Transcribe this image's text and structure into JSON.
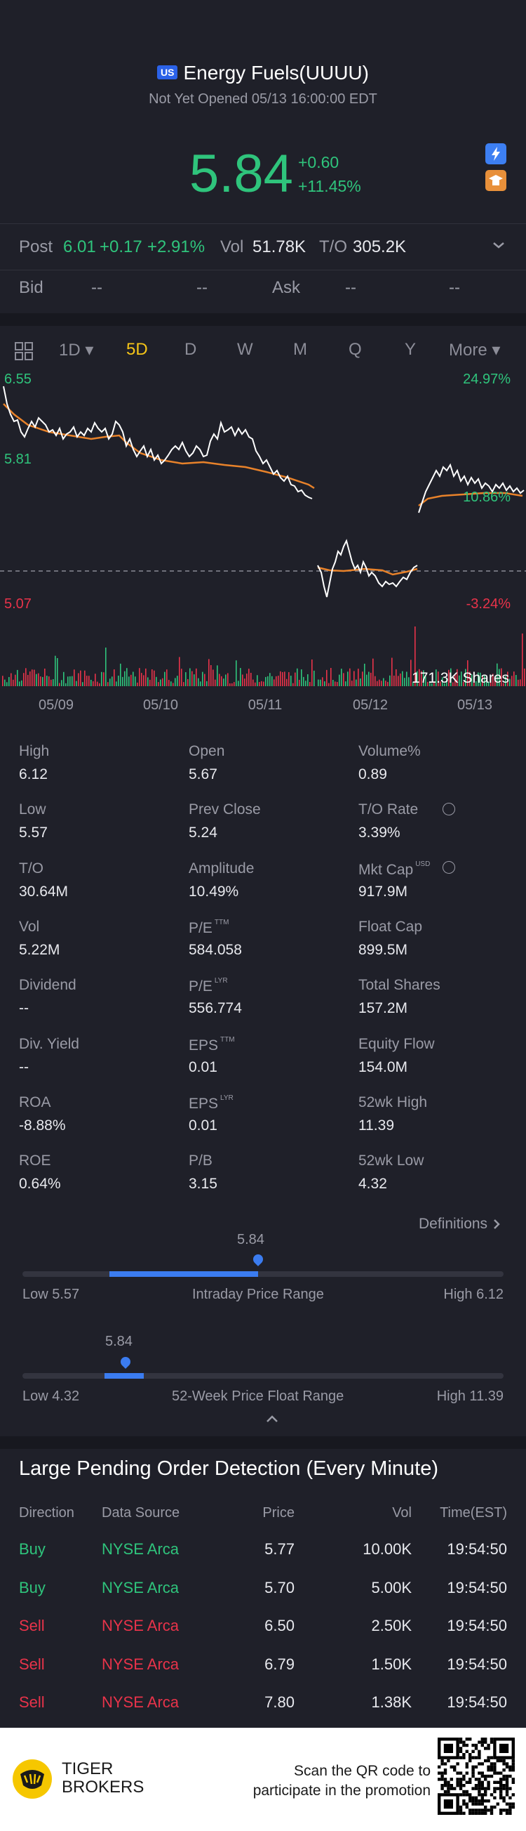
{
  "header": {
    "market_badge": "US",
    "title": "Energy Fuels(UUUU)",
    "status": "Not Yet Opened 05/13 16:00:00 EDT",
    "price": "5.84",
    "change": "+0.60",
    "change_pct": "+11.45%"
  },
  "post": {
    "label": "Post",
    "price": "6.01",
    "change": "+0.17",
    "change_pct": "+2.91%",
    "vol_label": "Vol",
    "vol": "51.78K",
    "to_label": "T/O",
    "to": "305.2K"
  },
  "bidask": {
    "bid_label": "Bid",
    "bid1": "--",
    "bid2": "--",
    "ask_label": "Ask",
    "ask1": "--",
    "ask2": "--"
  },
  "tabs": [
    "1D",
    "5D",
    "D",
    "W",
    "M",
    "Q",
    "Y",
    "More"
  ],
  "active_tab": "5D",
  "chart": {
    "left_top": "6.55",
    "left_mid": "5.81",
    "left_bottom": "5.07",
    "right_top": "24.97%",
    "right_mid": "10.86%",
    "right_bottom": "-3.24%",
    "volume_label": "171.3K Shares",
    "dates": [
      "05/09",
      "05/10",
      "05/11",
      "05/12",
      "05/13"
    ]
  },
  "stats": [
    {
      "label": "High",
      "value": "6.12"
    },
    {
      "label": "Open",
      "value": "5.67"
    },
    {
      "label": "Volume%",
      "value": "0.89"
    },
    {
      "label": "Low",
      "value": "5.57"
    },
    {
      "label": "Prev Close",
      "value": "5.24"
    },
    {
      "label": "T/O Rate",
      "value": "3.39%"
    },
    {
      "label": "T/O",
      "value": "30.64M"
    },
    {
      "label": "Amplitude",
      "value": "10.49%"
    },
    {
      "label": "Mkt Cap",
      "value": "917.9M",
      "sup": "USD"
    },
    {
      "label": "Vol",
      "value": "5.22M"
    },
    {
      "label": "P/E",
      "value": "584.058",
      "sup": "TTM"
    },
    {
      "label": "Float Cap",
      "value": "899.5M"
    },
    {
      "label": "Dividend",
      "value": "--"
    },
    {
      "label": "P/E",
      "value": "556.774",
      "sup": "LYR"
    },
    {
      "label": "Total Shares",
      "value": "157.2M"
    },
    {
      "label": "Div. Yield",
      "value": "--"
    },
    {
      "label": "EPS",
      "value": "0.01",
      "sup": "TTM"
    },
    {
      "label": "Equity Flow",
      "value": "154.0M"
    },
    {
      "label": "ROA",
      "value": "-8.88%"
    },
    {
      "label": "EPS",
      "value": "0.01",
      "sup": "LYR"
    },
    {
      "label": "52wk High",
      "value": "11.39"
    },
    {
      "label": "ROE",
      "value": "0.64%"
    },
    {
      "label": "P/B",
      "value": "3.15"
    },
    {
      "label": "52wk Low",
      "value": "4.32"
    }
  ],
  "definitions_link": "Definitions",
  "intraday_range": {
    "current": "5.84",
    "low": "Low 5.57",
    "title": "Intraday Price Range",
    "high": "High 6.12",
    "position": 0.49
  },
  "week52_range": {
    "current": "5.84",
    "low": "Low 4.32",
    "title": "52-Week Price Float Range",
    "high": "High 11.39",
    "position": 0.215
  },
  "orders": {
    "title": "Large Pending Order Detection (Every Minute)",
    "headers": [
      "Direction",
      "Data Source",
      "Price",
      "Vol",
      "Time(EST)"
    ],
    "rows": [
      {
        "direction": "Buy",
        "source": "NYSE Arca",
        "price": "5.77",
        "vol": "10.00K",
        "time": "19:54:50"
      },
      {
        "direction": "Buy",
        "source": "NYSE Arca",
        "price": "5.70",
        "vol": "5.00K",
        "time": "19:54:50"
      },
      {
        "direction": "Sell",
        "source": "NYSE Arca",
        "price": "6.50",
        "vol": "2.50K",
        "time": "19:54:50"
      },
      {
        "direction": "Sell",
        "source": "NYSE Arca",
        "price": "6.79",
        "vol": "1.50K",
        "time": "19:54:50"
      },
      {
        "direction": "Sell",
        "source": "NYSE Arca",
        "price": "7.80",
        "vol": "1.38K",
        "time": "19:54:50"
      }
    ]
  },
  "footer": {
    "brand_line1": "TIGER",
    "brand_line2": "BROKERS",
    "promo_line1": "Scan the QR code to",
    "promo_line2": "participate in the promotion"
  },
  "colors": {
    "up": "#2fc47c",
    "down": "#e8334a",
    "accent": "#f5c518",
    "range": "#3b7cf0"
  }
}
